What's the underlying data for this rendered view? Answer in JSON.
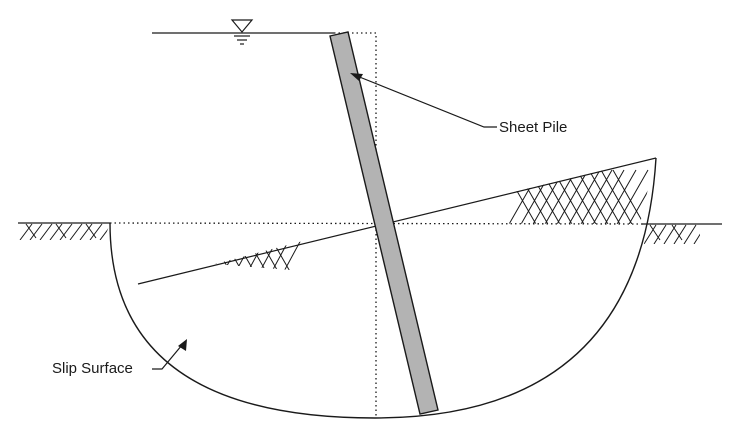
{
  "labels": {
    "sheet_pile": "Sheet Pile",
    "slip_surface": "Slip Surface"
  },
  "colors": {
    "line": "#1a1a1a",
    "pile_fill": "#b3b3b3",
    "background": "#ffffff"
  },
  "symbols": {
    "water_level": "water-table-triangle-icon"
  }
}
